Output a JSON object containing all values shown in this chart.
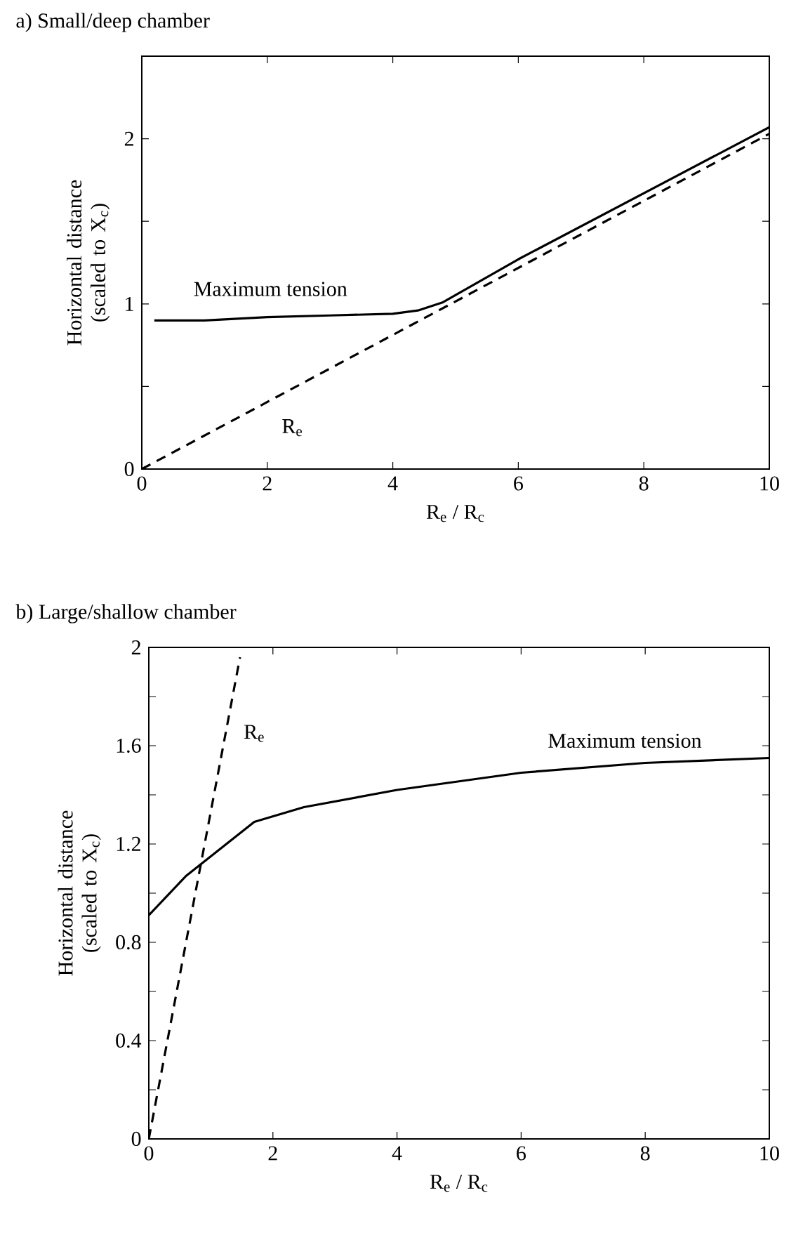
{
  "chart_data": [
    {
      "type": "line",
      "title": "a) Small/deep chamber",
      "xlabel": "R$_{e}$ / R$_{c}$",
      "ylabel": "Horizontal distance (scaled to X$_{c}$)",
      "marker": "none",
      "xlim": [
        0,
        10
      ],
      "ylim": [
        0,
        2.5
      ],
      "xticks": [
        0,
        2,
        4,
        6,
        8,
        10
      ],
      "yticks": [
        0,
        {
          "value": 0.5,
          "label": null
        },
        1,
        {
          "value": 1.5,
          "label": null
        },
        2
      ],
      "series": [
        {
          "name": "Maximum tension",
          "color": "#000000",
          "line_style": "solid",
          "x": [
            0.2,
            1,
            2,
            3,
            4,
            4.4,
            4.8,
            6,
            8,
            10
          ],
          "values": [
            0.9,
            0.9,
            0.92,
            0.93,
            0.94,
            0.96,
            1.01,
            1.27,
            1.67,
            2.07
          ]
        },
        {
          "name": "R$_{e}$",
          "color": "#000000",
          "line_style": "dashed",
          "x": [
            0,
            10
          ],
          "values": [
            0,
            2.03
          ]
        }
      ]
    },
    {
      "type": "line",
      "title": "b) Large/shallow chamber",
      "xlabel": "R$_{e}$ / R$_{c}$",
      "ylabel": "Horizontal distance (scaled to X$_{c}$)",
      "marker": "none",
      "xlim": [
        0,
        10
      ],
      "ylim": [
        0,
        2
      ],
      "xticks": [
        0,
        2,
        4,
        6,
        8,
        10
      ],
      "yticks": [
        0,
        {
          "value": 0.2,
          "label": null
        },
        0.4,
        {
          "value": 0.6,
          "label": null
        },
        0.8,
        {
          "value": 1.0,
          "label": null
        },
        1.2,
        {
          "value": 1.4,
          "label": null
        },
        1.6,
        {
          "value": 1.8,
          "label": null
        },
        2
      ],
      "series": [
        {
          "name": "Maximum tension",
          "color": "#000000",
          "line_style": "solid",
          "x": [
            0,
            0.6,
            1,
            1.7,
            2.5,
            4,
            6,
            8,
            10
          ],
          "values": [
            0.91,
            1.07,
            1.15,
            1.29,
            1.35,
            1.42,
            1.49,
            1.53,
            1.55
          ]
        },
        {
          "name": "R$_{e}$",
          "color": "#000000",
          "line_style": "dashed",
          "x": [
            0,
            1.47
          ],
          "values": [
            0,
            1.96
          ]
        }
      ]
    }
  ]
}
